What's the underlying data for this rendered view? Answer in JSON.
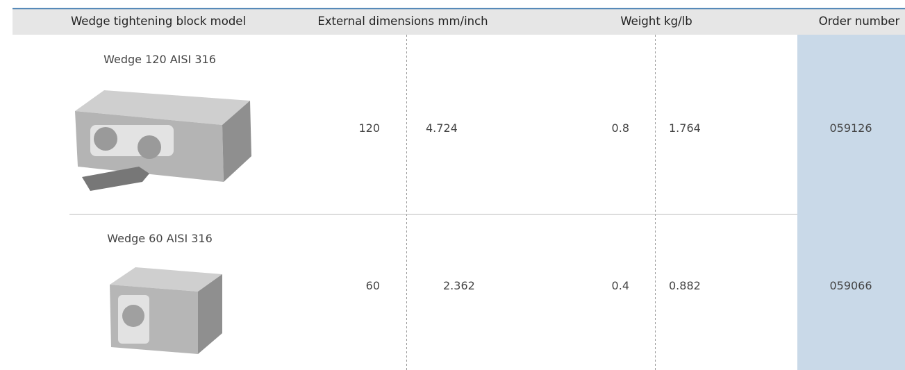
{
  "header": {
    "columns": [
      "Wedge tightening block model",
      "External dimensions mm/inch",
      "Weight kg/lb",
      "Order number"
    ]
  },
  "table": {
    "rows": [
      {
        "model": "Wedge 120 AISI 316",
        "mm": "120",
        "inch": "4.724",
        "kg": "0.8",
        "lb": "1.764",
        "order_number": "059126"
      },
      {
        "model": "Wedge 60 AISI 316",
        "mm": "60",
        "inch": "2.362",
        "kg": "0.4",
        "lb": "0.882",
        "order_number": "059066"
      }
    ]
  }
}
